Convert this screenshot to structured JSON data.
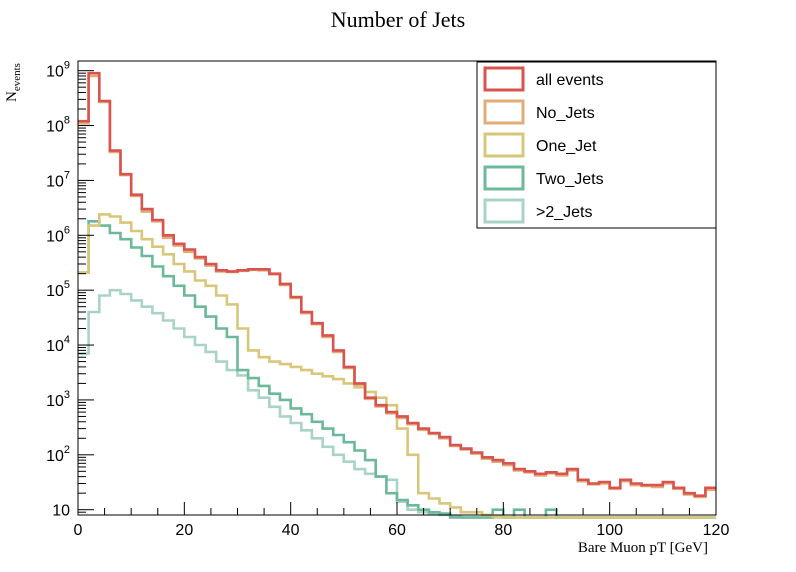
{
  "chart_data": {
    "type": "step-histogram",
    "title": "Number of Jets",
    "xlabel": "Bare Muon pT [GeV]",
    "ylabel_main": "N",
    "ylabel_sub": "events",
    "xlim": [
      0,
      120
    ],
    "ylim": [
      8,
      1500000000
    ],
    "yscale": "log",
    "bin_width": 2,
    "x_ticks": [
      0,
      20,
      40,
      60,
      80,
      100,
      120
    ],
    "y_ticks": [
      {
        "value": 10,
        "base": "10",
        "exp": ""
      },
      {
        "value": 100,
        "base": "10",
        "exp": "2"
      },
      {
        "value": 1000,
        "base": "10",
        "exp": "3"
      },
      {
        "value": 10000,
        "base": "10",
        "exp": "4"
      },
      {
        "value": 100000,
        "base": "10",
        "exp": "5"
      },
      {
        "value": 1000000,
        "base": "10",
        "exp": "6"
      },
      {
        "value": 10000000,
        "base": "10",
        "exp": "7"
      },
      {
        "value": 100000000,
        "base": "10",
        "exp": "8"
      },
      {
        "value": 1000000000,
        "base": "10",
        "exp": "9"
      }
    ],
    "legend_position": "top-right",
    "series": [
      {
        "name": "all events",
        "color": "#d9534f",
        "values": [
          120000000,
          900000000,
          280000000,
          35000000,
          13000000,
          5500000,
          3000000,
          1900000,
          1000000,
          700000,
          550000,
          400000,
          300000,
          230000,
          220000,
          230000,
          240000,
          240000,
          200000,
          130000,
          75000,
          40000,
          25000,
          15000,
          8000,
          4000,
          2000,
          1100,
          800,
          600,
          500,
          380,
          300,
          250,
          210,
          150,
          130,
          110,
          90,
          80,
          70,
          55,
          50,
          45,
          48,
          45,
          55,
          35,
          30,
          32,
          25,
          35,
          30,
          28,
          28,
          32,
          25,
          20,
          18,
          25
        ]
      },
      {
        "name": "No_Jets",
        "color": "#e0ad78",
        "values": [
          110000000,
          800000000,
          270000000,
          33000000,
          12500000,
          5200000,
          2700000,
          1800000,
          900000,
          650000,
          500000,
          380000,
          280000,
          220000,
          215000,
          225000,
          235000,
          230000,
          195000,
          125000,
          72000,
          38000,
          24000,
          14000,
          7500,
          3800,
          1900,
          1050,
          760,
          570,
          470,
          360,
          285,
          240,
          200,
          145,
          125,
          105,
          85,
          75,
          65,
          52,
          48,
          42,
          46,
          42,
          52,
          33,
          29,
          30,
          24,
          33,
          28,
          27,
          26,
          30,
          24,
          19,
          17,
          23
        ]
      },
      {
        "name": "One_Jet",
        "color": "#d8c77a",
        "values": [
          210000,
          1500000,
          2400000,
          2200000,
          1700000,
          1200000,
          850000,
          620000,
          450000,
          300000,
          220000,
          150000,
          120000,
          80000,
          55000,
          20000,
          8000,
          6000,
          5000,
          4500,
          4000,
          3500,
          3000,
          2700,
          2400,
          2000,
          1700,
          1400,
          1100,
          800,
          300,
          100,
          20,
          16,
          13,
          11,
          9,
          9,
          8,
          7.5,
          7,
          7,
          7,
          6,
          6,
          6,
          6,
          6,
          6,
          6,
          6,
          6,
          6,
          6,
          6,
          6,
          6,
          6,
          6,
          6
        ]
      },
      {
        "name": "Two_Jets",
        "color": "#6bb89a",
        "values": [
          210000,
          1800000,
          1500000,
          1100000,
          850000,
          600000,
          420000,
          270000,
          180000,
          120000,
          80000,
          50000,
          33000,
          20000,
          14000,
          3500,
          2500,
          1800,
          1300,
          1000,
          700,
          550,
          400,
          300,
          230,
          170,
          120,
          80,
          40,
          20,
          15,
          12,
          10,
          9,
          8.5,
          7,
          7,
          6,
          6,
          10,
          6,
          10,
          6,
          6,
          10,
          6,
          6,
          6,
          6,
          6,
          6,
          6,
          6,
          6,
          6,
          6,
          6,
          6,
          6,
          6
        ]
      },
      {
        "name": ">2_Jets",
        "color": "#a9d3c4",
        "values": [
          7000,
          40000,
          80000,
          100000,
          85000,
          65000,
          50000,
          38000,
          28000,
          20000,
          14000,
          10000,
          7500,
          5000,
          3500,
          2800,
          1500,
          1100,
          750,
          500,
          380,
          280,
          200,
          140,
          100,
          75,
          55,
          45,
          40,
          35,
          14,
          10,
          9,
          8.5,
          8,
          7.5,
          7,
          6,
          6,
          6,
          6,
          6,
          6,
          6,
          6,
          6,
          6,
          6,
          6,
          6,
          6,
          6,
          6,
          6,
          6,
          6,
          6,
          6,
          6,
          6
        ]
      }
    ]
  }
}
